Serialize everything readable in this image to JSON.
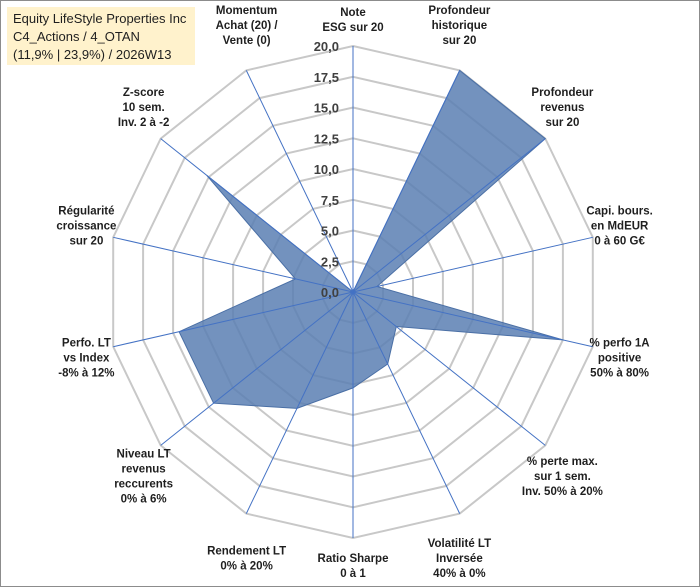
{
  "header": {
    "line1": "Equity LifeStyle Properties Inc",
    "line2": "C4_Actions / 4_OTAN",
    "line3": "(11,9% | 23,9%) / 2026W13"
  },
  "colors": {
    "fill": "#5b7fb3",
    "grid": "#c8c8c8",
    "spoke": "#4472c4",
    "title_bg": "#fff2cc"
  },
  "chart_data": {
    "type": "radar",
    "title": "Equity LifeStyle Properties Inc",
    "rmin": 0,
    "rmax": 20,
    "ticks": [
      "0,0",
      "2,5",
      "5,0",
      "7,5",
      "10,0",
      "12,5",
      "15,0",
      "17,5",
      "20,0"
    ],
    "tick_values": [
      0,
      2.5,
      5,
      7.5,
      10,
      12.5,
      15,
      17.5,
      20
    ],
    "axes": [
      {
        "lines": [
          "Note",
          "ESG sur 20"
        ],
        "value": 0
      },
      {
        "lines": [
          "Profondeur",
          "historique",
          "sur 20"
        ],
        "value": 20
      },
      {
        "lines": [
          "Profondeur",
          "revenus",
          "sur 20"
        ],
        "value": 20
      },
      {
        "lines": [
          "Capi. bours.",
          "en MdEUR",
          "0 à 60 G€"
        ],
        "value": 2
      },
      {
        "lines": [
          "% perfo 1A",
          "positive",
          "50% à 80%"
        ],
        "value": 17.5
      },
      {
        "lines": [
          "% perte max.",
          "sur 1 sem.",
          "Inv. 50% à 20%"
        ],
        "value": 4.5
      },
      {
        "lines": [
          "Volatilité LT",
          "Inversée",
          "40% à 0%"
        ],
        "value": 6.5
      },
      {
        "lines": [
          "Ratio Sharpe",
          "0 à 1"
        ],
        "value": 7.8
      },
      {
        "lines": [
          "Rendement LT",
          "0% à 20%"
        ],
        "value": 10.5
      },
      {
        "lines": [
          "Niveau LT",
          "revenus",
          "reccurents",
          "0% à 6%"
        ],
        "value": 14.5
      },
      {
        "lines": [
          "Perfo. LT",
          "vs Index",
          "-8% à 12%"
        ],
        "value": 14.5
      },
      {
        "lines": [
          "Régularité",
          "croissance",
          "sur 20"
        ],
        "value": 4.8
      },
      {
        "lines": [
          "Z-score",
          "10 sem.",
          "Inv. 2 à -2"
        ],
        "value": 15.2
      },
      {
        "lines": [
          "Momentum",
          "Achat (20) /",
          "Vente (0)"
        ],
        "value": 0
      }
    ]
  }
}
